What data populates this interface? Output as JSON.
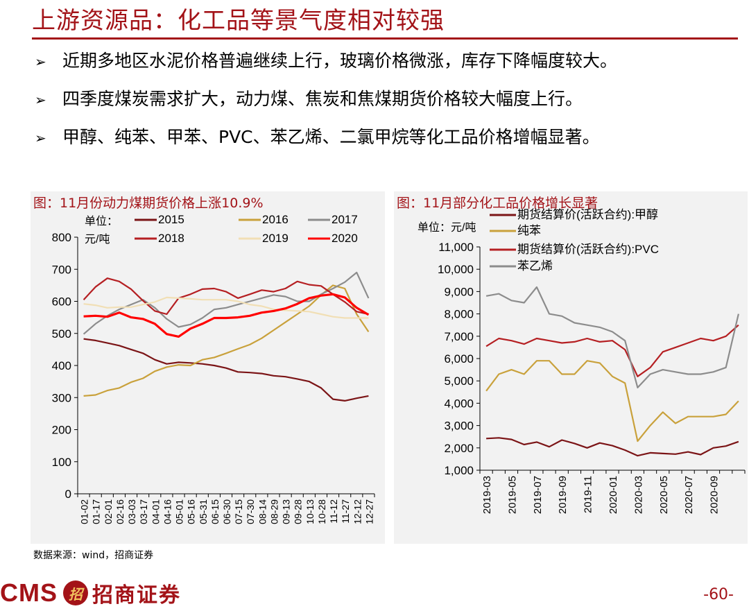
{
  "slide": {
    "title": "上游资源品：化工品等景气度相对较强",
    "bullets": [
      "近期多地区水泥价格普遍继续上行，玻璃价格微涨，库存下降幅度较大。",
      "四季度煤炭需求扩大，动力煤、焦炭和焦煤期货价格较大幅度上行。",
      "甲醇、纯苯、甲苯、PVC、苯乙烯、二氯甲烷等化工品价格增幅显著。"
    ],
    "bullet_icon": "arrow-right-icon",
    "source": "数据来源：wind，招商证券",
    "footer": {
      "brand": "CMS",
      "emblem": "招",
      "company": "招商证券",
      "page": "-60-"
    },
    "colors": {
      "brand": "#a31318"
    }
  },
  "chart_data": [
    {
      "type": "line",
      "title": "图：11月份动力煤期货价格上涨10.9%",
      "unit": "单位：元/吨",
      "ylim": [
        0,
        800
      ],
      "yticks": [
        0,
        100,
        200,
        300,
        400,
        500,
        600,
        700,
        800
      ],
      "categories": [
        "01-02",
        "01-17",
        "02-01",
        "02-16",
        "03-03",
        "03-17",
        "04-01",
        "04-16",
        "05-01",
        "05-16",
        "05-31",
        "06-15",
        "06-30",
        "07-15",
        "07-30",
        "08-14",
        "08-29",
        "09-13",
        "09-28",
        "10-13",
        "10-28",
        "11-12",
        "11-27",
        "12-12",
        "12-27"
      ],
      "grid": false,
      "legend_position": "top",
      "series": [
        {
          "name": "2015",
          "color": "#7b1416",
          "values": [
            483,
            478,
            470,
            462,
            450,
            438,
            418,
            405,
            410,
            408,
            405,
            400,
            392,
            380,
            378,
            375,
            368,
            365,
            358,
            350,
            330,
            295,
            290,
            298,
            305
          ]
        },
        {
          "name": "2016",
          "color": "#c9a13b",
          "values": [
            305,
            308,
            322,
            330,
            348,
            360,
            382,
            395,
            402,
            400,
            418,
            425,
            438,
            452,
            465,
            485,
            510,
            535,
            560,
            585,
            620,
            650,
            640,
            560,
            505
          ]
        },
        {
          "name": "2017",
          "color": "#8c8c8c",
          "values": [
            498,
            530,
            555,
            575,
            590,
            605,
            580,
            545,
            520,
            528,
            548,
            575,
            580,
            590,
            600,
            610,
            620,
            615,
            600,
            600,
            622,
            640,
            660,
            690,
            610
          ]
        },
        {
          "name": "2018",
          "color": "#b51f22",
          "values": [
            605,
            645,
            672,
            662,
            638,
            602,
            570,
            560,
            610,
            622,
            638,
            640,
            630,
            610,
            622,
            635,
            630,
            640,
            662,
            652,
            648,
            622,
            598,
            568,
            560
          ]
        },
        {
          "name": "2019",
          "color": "#f1dfb5",
          "values": [
            592,
            588,
            580,
            582,
            582,
            590,
            598,
            612,
            610,
            608,
            605,
            605,
            605,
            600,
            590,
            585,
            575,
            572,
            570,
            568,
            560,
            552,
            548,
            548,
            548
          ]
        },
        {
          "name": "2020",
          "color": "#ff0000",
          "values": [
            553,
            555,
            552,
            565,
            550,
            545,
            530,
            498,
            490,
            515,
            530,
            548,
            548,
            550,
            555,
            565,
            570,
            578,
            592,
            610,
            618,
            622,
            612,
            580,
            558
          ]
        }
      ]
    },
    {
      "type": "line",
      "title": "图：11月部分化工品价格增长显著",
      "unit": "单位：元/吨",
      "ylim": [
        1000,
        11000
      ],
      "yticks": [
        1000,
        2000,
        3000,
        4000,
        5000,
        6000,
        7000,
        8000,
        9000,
        10000,
        11000
      ],
      "categories": [
        "2019-03",
        "2019-05",
        "2019-07",
        "2019-09",
        "2019-11",
        "2020-01",
        "2020-03",
        "2020-05",
        "2020-07",
        "2020-09"
      ],
      "x": [
        "2019-03",
        "2019-04",
        "2019-05",
        "2019-06",
        "2019-07",
        "2019-08",
        "2019-09",
        "2019-10",
        "2019-11",
        "2019-12",
        "2020-01",
        "2020-02",
        "2020-03",
        "2020-04",
        "2020-05",
        "2020-06",
        "2020-07",
        "2020-08",
        "2020-09",
        "2020-10",
        "2020-11"
      ],
      "grid": false,
      "legend_position": "top",
      "series": [
        {
          "name": "期货结算价(活跃合约):甲醇",
          "color": "#7b1416",
          "values": [
            2420,
            2450,
            2380,
            2150,
            2260,
            2050,
            2350,
            2200,
            2000,
            2220,
            2100,
            1900,
            1650,
            1780,
            1750,
            1720,
            1820,
            1700,
            2000,
            2080,
            2280
          ]
        },
        {
          "name": "纯苯",
          "color": "#c9a13b",
          "values": [
            4550,
            5300,
            5500,
            5300,
            5900,
            5900,
            5300,
            5300,
            5900,
            5800,
            5200,
            4900,
            2300,
            3000,
            3600,
            3100,
            3400,
            3400,
            3400,
            3500,
            4100
          ]
        },
        {
          "name": "期货结算价(活跃合约):PVC",
          "color": "#b51f22",
          "values": [
            6550,
            6900,
            6800,
            6650,
            6900,
            6800,
            6700,
            6750,
            6900,
            6750,
            6800,
            6400,
            5200,
            5600,
            6300,
            6500,
            6700,
            6900,
            6800,
            7000,
            7500
          ]
        },
        {
          "name": "苯乙烯",
          "color": "#8c8c8c",
          "values": [
            8800,
            8900,
            8600,
            8500,
            9200,
            8000,
            7900,
            7600,
            7500,
            7400,
            7200,
            6800,
            4700,
            5300,
            5500,
            5400,
            5300,
            5300,
            5400,
            5600,
            8000
          ]
        }
      ]
    }
  ]
}
